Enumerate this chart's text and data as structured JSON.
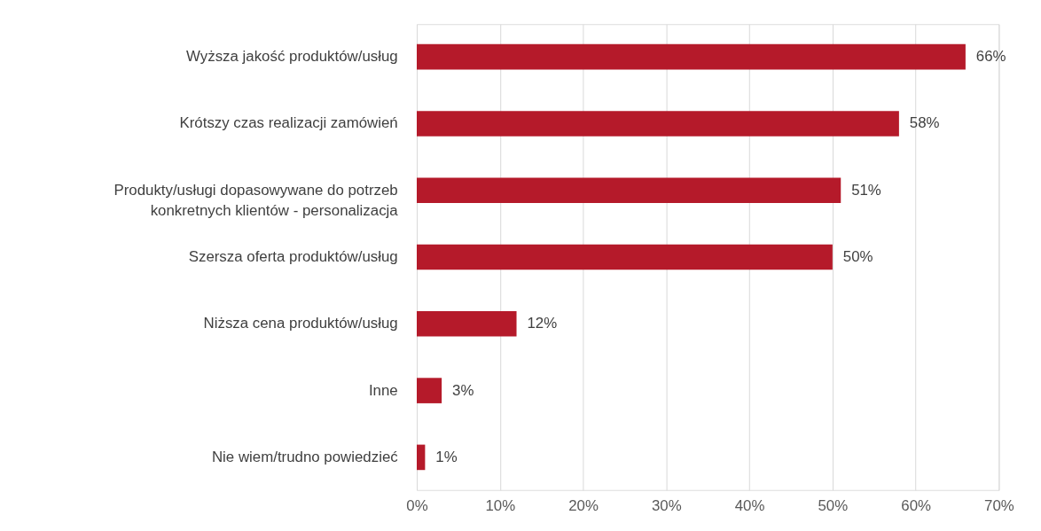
{
  "chart_data": {
    "type": "bar",
    "orientation": "horizontal",
    "categories": [
      "Wyższa jakość produktów/usług",
      "Krótszy czas realizacji zamówień",
      "Produkty/usługi dopasowywane do potrzeb\nkonkretnych klientów - personalizacja",
      "Szersza oferta produktów/usług",
      "Niższa cena produktów/usług",
      "Inne",
      "Nie wiem/trudno powiedzieć"
    ],
    "values": [
      66,
      58,
      51,
      50,
      12,
      3,
      1
    ],
    "value_labels": [
      "66%",
      "58%",
      "51%",
      "50%",
      "12%",
      "3%",
      "1%"
    ],
    "color": "#b51a2a",
    "xlim": [
      0,
      70
    ],
    "xticks": [
      {
        "value": 0,
        "label": "0%"
      },
      {
        "value": 10,
        "label": "10%"
      },
      {
        "value": 20,
        "label": "20%"
      },
      {
        "value": 30,
        "label": "30%"
      },
      {
        "value": 40,
        "label": "40%"
      },
      {
        "value": 50,
        "label": "50%"
      },
      {
        "value": 60,
        "label": "60%"
      },
      {
        "value": 70,
        "label": "70%"
      }
    ],
    "grid": "x"
  }
}
